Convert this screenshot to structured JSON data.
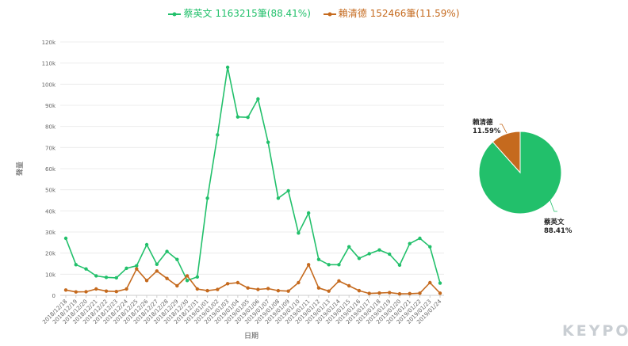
{
  "chart_data": [
    {
      "type": "line",
      "legend": [
        {
          "name": "蔡英文",
          "summary": "1163215筆(88.41%)",
          "color": "#22c06b"
        },
        {
          "name": "賴清德",
          "summary": "152466筆(11.59%)",
          "color": "#c56a1e"
        }
      ],
      "xlabel": "日期",
      "ylabel": "聲量",
      "ylim": [
        0,
        120000
      ],
      "yticks": [
        0,
        10000,
        20000,
        30000,
        40000,
        50000,
        60000,
        70000,
        80000,
        90000,
        100000,
        110000,
        120000
      ],
      "ytick_labels": [
        "0",
        "10k",
        "20k",
        "30k",
        "40k",
        "50k",
        "60k",
        "70k",
        "80k",
        "90k",
        "100k",
        "110k",
        "120k"
      ],
      "categories": [
        "2018/12/18",
        "2018/12/19",
        "2018/12/20",
        "2018/12/21",
        "2018/12/22",
        "2018/12/23",
        "2018/12/24",
        "2018/12/25",
        "2018/12/26",
        "2018/12/27",
        "2018/12/28",
        "2018/12/29",
        "2018/12/30",
        "2018/12/31",
        "2019/01/01",
        "2019/01/02",
        "2019/01/03",
        "2019/01/04",
        "2019/01/05",
        "2019/01/06",
        "2019/01/07",
        "2019/01/08",
        "2019/01/09",
        "2019/01/10",
        "2019/01/11",
        "2019/01/12",
        "2019/01/13",
        "2019/01/14",
        "2019/01/15",
        "2019/01/16",
        "2019/01/17",
        "2019/01/18",
        "2019/01/19",
        "2019/01/20",
        "2019/01/21",
        "2019/01/22",
        "2019/01/23",
        "2019/01/24"
      ],
      "series": [
        {
          "name": "蔡英文",
          "color": "#22c06b",
          "values": [
            27000,
            14500,
            12500,
            9200,
            8500,
            8300,
            12800,
            14000,
            24000,
            14700,
            20800,
            17000,
            7000,
            8700,
            46000,
            76000,
            108000,
            84500,
            84300,
            93000,
            72500,
            46000,
            49500,
            29500,
            39000,
            17000,
            14500,
            14500,
            23000,
            17500,
            19700,
            21500,
            19500,
            14300,
            24500,
            27000,
            23000,
            5800
          ]
        },
        {
          "name": "賴清德",
          "color": "#c56a1e",
          "values": [
            2500,
            1600,
            1700,
            3000,
            2000,
            1800,
            3000,
            12500,
            7000,
            11500,
            8000,
            4500,
            9200,
            3000,
            2200,
            2800,
            5500,
            6000,
            3500,
            2800,
            3200,
            2200,
            2000,
            6000,
            14500,
            3500,
            2000,
            6800,
            4500,
            2200,
            900,
            1100,
            1300,
            700,
            800,
            1000,
            6000,
            1000
          ]
        }
      ]
    },
    {
      "type": "pie",
      "slices": [
        {
          "name": "蔡英文",
          "percent_label": "88.41%",
          "value": 88.41,
          "color": "#22c06b"
        },
        {
          "name": "賴清德",
          "percent_label": "11.59%",
          "value": 11.59,
          "color": "#c56a1e"
        }
      ]
    }
  ],
  "logo_text": "KEYPO"
}
